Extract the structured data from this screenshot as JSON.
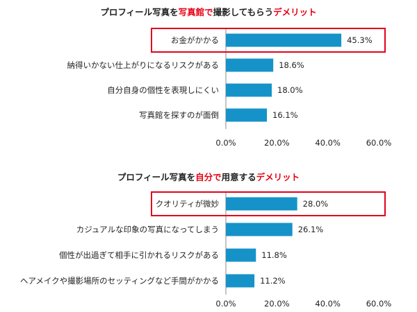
{
  "colors": {
    "bar": "#1593c8",
    "highlight_box": "#e0001b",
    "title_highlight": "#e60012",
    "axis": "#888888"
  },
  "chart_data": [
    {
      "type": "bar",
      "orientation": "horizontal",
      "title_parts": [
        "プロフィール写真を",
        "写真館で",
        "撮影してもらう",
        "デメリット"
      ],
      "categories": [
        "お金がかかる",
        "納得いかない仕上がりになるリスクがある",
        "自分自身の個性を表現しにくい",
        "写真館を探すのが面倒"
      ],
      "values": [
        45.3,
        18.6,
        18.0,
        16.1
      ],
      "value_labels": [
        "45.3%",
        "18.6%",
        "18.0%",
        "16.1%"
      ],
      "xlim": [
        0,
        60
      ],
      "xticks": [
        "0.0%",
        "20.0%",
        "40.0%",
        "60.0%"
      ],
      "highlighted_category": "お金がかかる"
    },
    {
      "type": "bar",
      "orientation": "horizontal",
      "title_parts": [
        "プロフィール写真を",
        "自分で",
        "用意する",
        "デメリット"
      ],
      "categories": [
        "クオリティが微妙",
        "カジュアルな印象の写真になってしまう",
        "個性が出過ぎて相手に引かれるリスクがある",
        "ヘアメイクや撮影場所のセッティングなど手間がかかる"
      ],
      "values": [
        28.0,
        26.1,
        11.8,
        11.2
      ],
      "value_labels": [
        "28.0%",
        "26.1%",
        "11.8%",
        "11.2%"
      ],
      "xlim": [
        0,
        60
      ],
      "xticks": [
        "0.0%",
        "20.0%",
        "40.0%",
        "60.0%"
      ],
      "highlighted_category": "クオリティが微妙"
    }
  ]
}
